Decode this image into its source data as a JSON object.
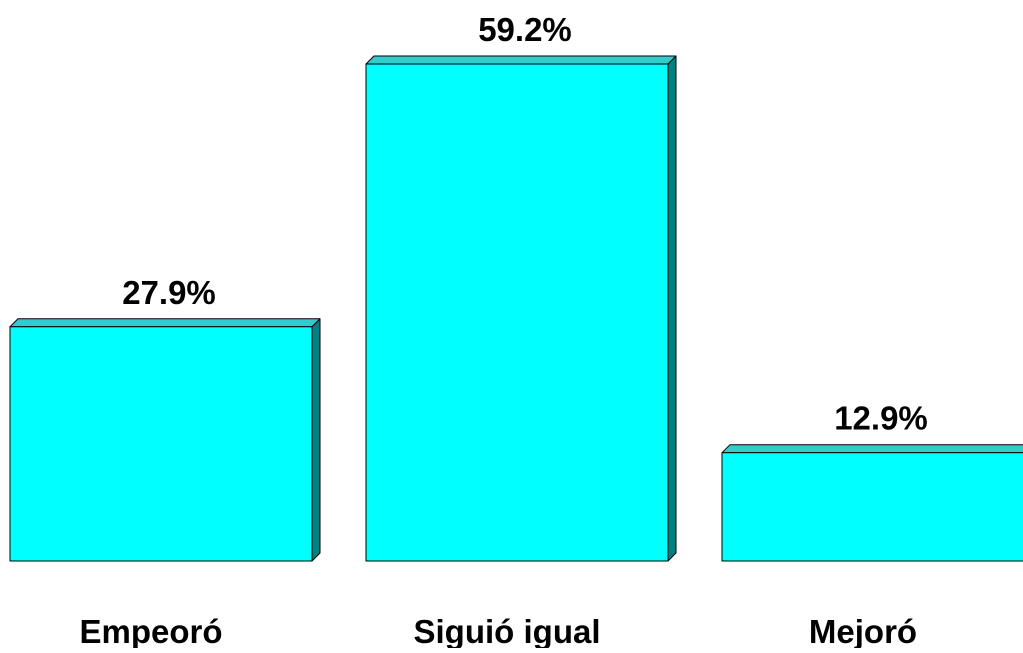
{
  "chart_data": {
    "type": "bar",
    "categories": [
      "Empeoró",
      "Siguió igual",
      "Mejoró"
    ],
    "values": [
      27.9,
      59.2,
      12.9
    ],
    "value_labels": [
      "27.9%",
      "59.2%",
      "12.9%"
    ],
    "style": "3d",
    "ylim": [
      0,
      59.2
    ],
    "grid": false,
    "legend": "none",
    "colors": {
      "bar_front": "#00FFFF",
      "bar_top": "#33CCCC",
      "bar_side": "#008080",
      "outline": "#000000"
    }
  }
}
